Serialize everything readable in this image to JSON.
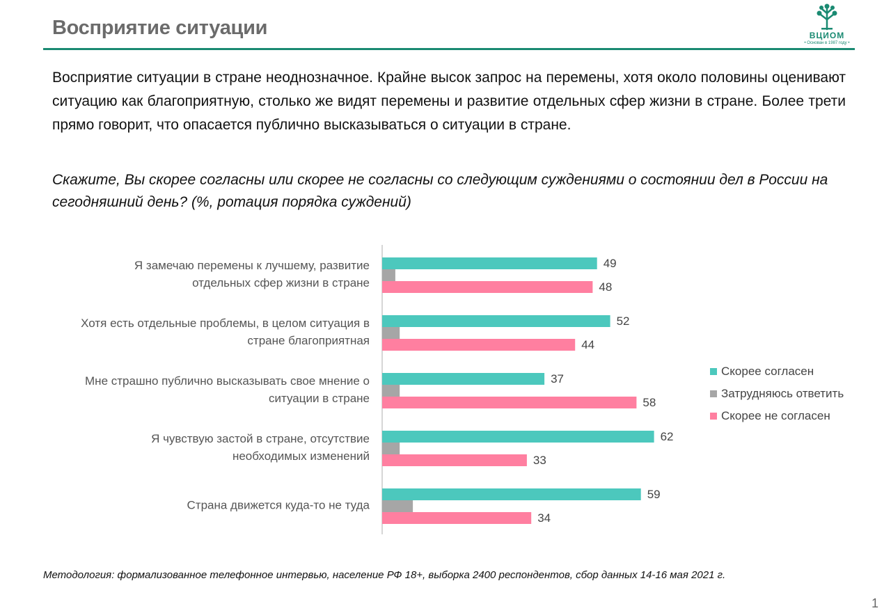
{
  "header": {
    "title": "Восприятие ситуации",
    "logo_name": "ВЦИОМ",
    "logo_tagline": "• Основан в 1987 году •"
  },
  "intro_text": "Восприятие ситуации в стране неоднозначное. Крайне высок запрос на перемены, хотя около половины оценивают ситуацию как благоприятную, столько же видят перемены и развитие отдельных сфер жизни в стране. Более трети прямо говорит, что опасается публично высказываться о ситуации в стране.",
  "question": "Скажите, Вы скорее согласны или скорее не согласны со следующим суждениями о состоянии дел в России на сегодняшний день? (%, ротация порядка суждений)",
  "colors": {
    "brand": "#1a8a72",
    "agree": "#4cc8bd",
    "hard_to_say": "#a6a6a6",
    "disagree": "#ff7fa0"
  },
  "chart_data": {
    "type": "bar",
    "orientation": "horizontal",
    "categories": [
      [
        "Я замечаю перемены к лучшему, развитие",
        "отдельных сфер жизни в стране"
      ],
      [
        "Хотя есть отдельные проблемы, в целом ситуация в",
        "стране благоприятная"
      ],
      [
        "Мне страшно публично высказывать свое мнение о",
        "ситуации в стране"
      ],
      [
        "Я чувствую застой в стране, отсутствие",
        "необходимых изменений"
      ],
      [
        "Страна движется куда-то не туда"
      ]
    ],
    "series": [
      {
        "name": "Скорее согласен",
        "color": "#4cc8bd",
        "values": [
          49,
          52,
          37,
          62,
          59
        ],
        "labeled": true
      },
      {
        "name": "Затрудняюсь ответить",
        "color": "#a6a6a6",
        "values": [
          3,
          4,
          4,
          4,
          7
        ],
        "labeled": false
      },
      {
        "name": "Скорее не согласен",
        "color": "#ff7fa0",
        "values": [
          48,
          44,
          58,
          33,
          34
        ],
        "labeled": true
      }
    ],
    "xlim": [
      0,
      100
    ],
    "grid": false,
    "legend_position": "right"
  },
  "footer": {
    "methodology": "Методология: формализованное телефонное интервью, население РФ 18+, выборка 2400 респондентов, сбор данных 14-16 мая 2021 г.",
    "page_number": "1"
  }
}
